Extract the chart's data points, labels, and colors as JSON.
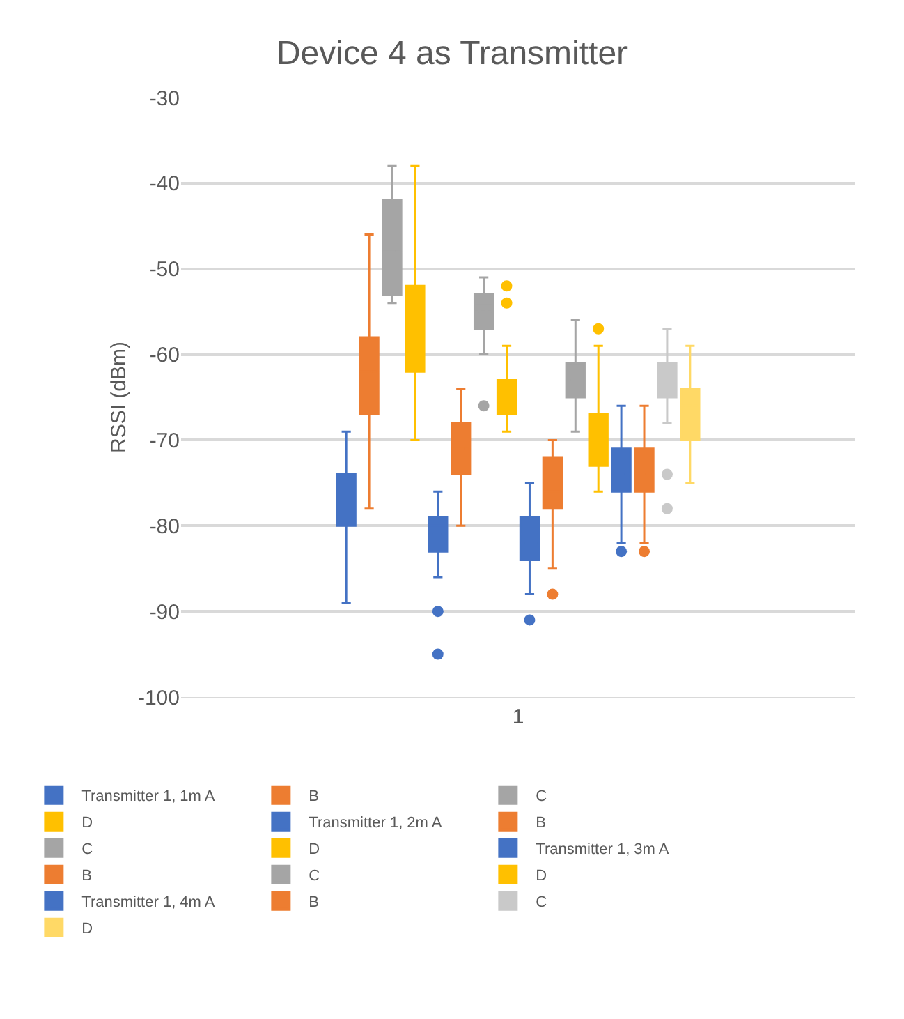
{
  "chart_data": {
    "type": "box",
    "title": "Device 4 as Transmitter",
    "ylabel": "RSSI (dBm)",
    "categories": [
      "1"
    ],
    "ylim": [
      -100,
      -30
    ],
    "yticks": [
      -100,
      -90,
      -80,
      -70,
      -60,
      -50,
      -40,
      -30
    ],
    "grid": "y",
    "legend": "bottom",
    "series": [
      {
        "name": "Transmitter 1, 1m A",
        "color": "#4472c4",
        "boxes": [
          {
            "low": -89,
            "q1": -80,
            "median": -77,
            "q3": -74,
            "high": -69,
            "mean": -77
          }
        ]
      },
      {
        "name": "B",
        "color": "#ed7d31",
        "boxes": [
          {
            "low": -78,
            "q1": -67,
            "median": -62,
            "q3": -58,
            "high": -46,
            "mean": -62
          }
        ]
      },
      {
        "name": "C",
        "color": "#a5a5a5",
        "boxes": [
          {
            "low": -54,
            "q1": -53,
            "median": -48,
            "q3": -42,
            "high": -38,
            "mean": -48
          }
        ]
      },
      {
        "name": "D",
        "color": "#ffc000",
        "boxes": [
          {
            "low": -70,
            "q1": -62,
            "median": -59,
            "q3": -52,
            "high": -38,
            "mean": -56
          }
        ]
      },
      {
        "name": "Transmitter 1, 2m A",
        "color": "#4472c4",
        "boxes": [
          {
            "low": -86,
            "q1": -83,
            "median": -80,
            "q3": -79,
            "high": -76,
            "mean": -81,
            "outliers": [
              -90,
              -95
            ]
          }
        ]
      },
      {
        "name": "B",
        "color": "#ed7d31",
        "boxes": [
          {
            "low": -80,
            "q1": -74,
            "median": -71,
            "q3": -68,
            "high": -64,
            "mean": -71
          }
        ]
      },
      {
        "name": "C",
        "color": "#a5a5a5",
        "boxes": [
          {
            "low": -60,
            "q1": -57,
            "median": -54,
            "q3": -53,
            "high": -51,
            "mean": -55,
            "outliers": [
              -66
            ]
          }
        ]
      },
      {
        "name": "D",
        "color": "#ffc000",
        "boxes": [
          {
            "low": -69,
            "q1": -67,
            "median": -65,
            "q3": -63,
            "high": -59,
            "mean": -64,
            "outliers": [
              -52,
              -54
            ]
          }
        ]
      },
      {
        "name": "Transmitter 1, 3m A",
        "color": "#4472c4",
        "boxes": [
          {
            "low": -88,
            "q1": -84,
            "median": -81,
            "q3": -79,
            "high": -75,
            "mean": -82,
            "outliers": [
              -91
            ]
          }
        ]
      },
      {
        "name": "B",
        "color": "#ed7d31",
        "boxes": [
          {
            "low": -85,
            "q1": -78,
            "median": -76,
            "q3": -72,
            "high": -70,
            "mean": -75,
            "outliers": [
              -88
            ]
          }
        ]
      },
      {
        "name": "C",
        "color": "#a5a5a5",
        "boxes": [
          {
            "low": -69,
            "q1": -65,
            "median": -63,
            "q3": -61,
            "high": -56,
            "mean": -63
          }
        ]
      },
      {
        "name": "D",
        "color": "#ffc000",
        "boxes": [
          {
            "low": -76,
            "q1": -73,
            "median": -70,
            "q3": -67,
            "high": -59,
            "mean": -69,
            "outliers": [
              -57
            ]
          }
        ]
      },
      {
        "name": "Transmitter 1, 4m A",
        "color": "#4472c4",
        "boxes": [
          {
            "low": -82,
            "q1": -76,
            "median": -74,
            "q3": -71,
            "high": -66,
            "mean": -74,
            "outliers": [
              -83
            ]
          }
        ]
      },
      {
        "name": "B",
        "color": "#ed7d31",
        "boxes": [
          {
            "low": -82,
            "q1": -76,
            "median": -74,
            "q3": -71,
            "high": -66,
            "mean": -74,
            "outliers": [
              -83
            ]
          }
        ]
      },
      {
        "name": "C",
        "color": "#c9c9c9",
        "boxes": [
          {
            "low": -68,
            "q1": -65,
            "median": -63,
            "q3": -61,
            "high": -57,
            "mean": -63,
            "outliers": [
              -74,
              -78
            ]
          }
        ]
      },
      {
        "name": "D",
        "color": "#ffd966",
        "boxes": [
          {
            "low": -75,
            "q1": -70,
            "median": -67,
            "q3": -64,
            "high": -59,
            "mean": -66
          }
        ]
      }
    ]
  }
}
